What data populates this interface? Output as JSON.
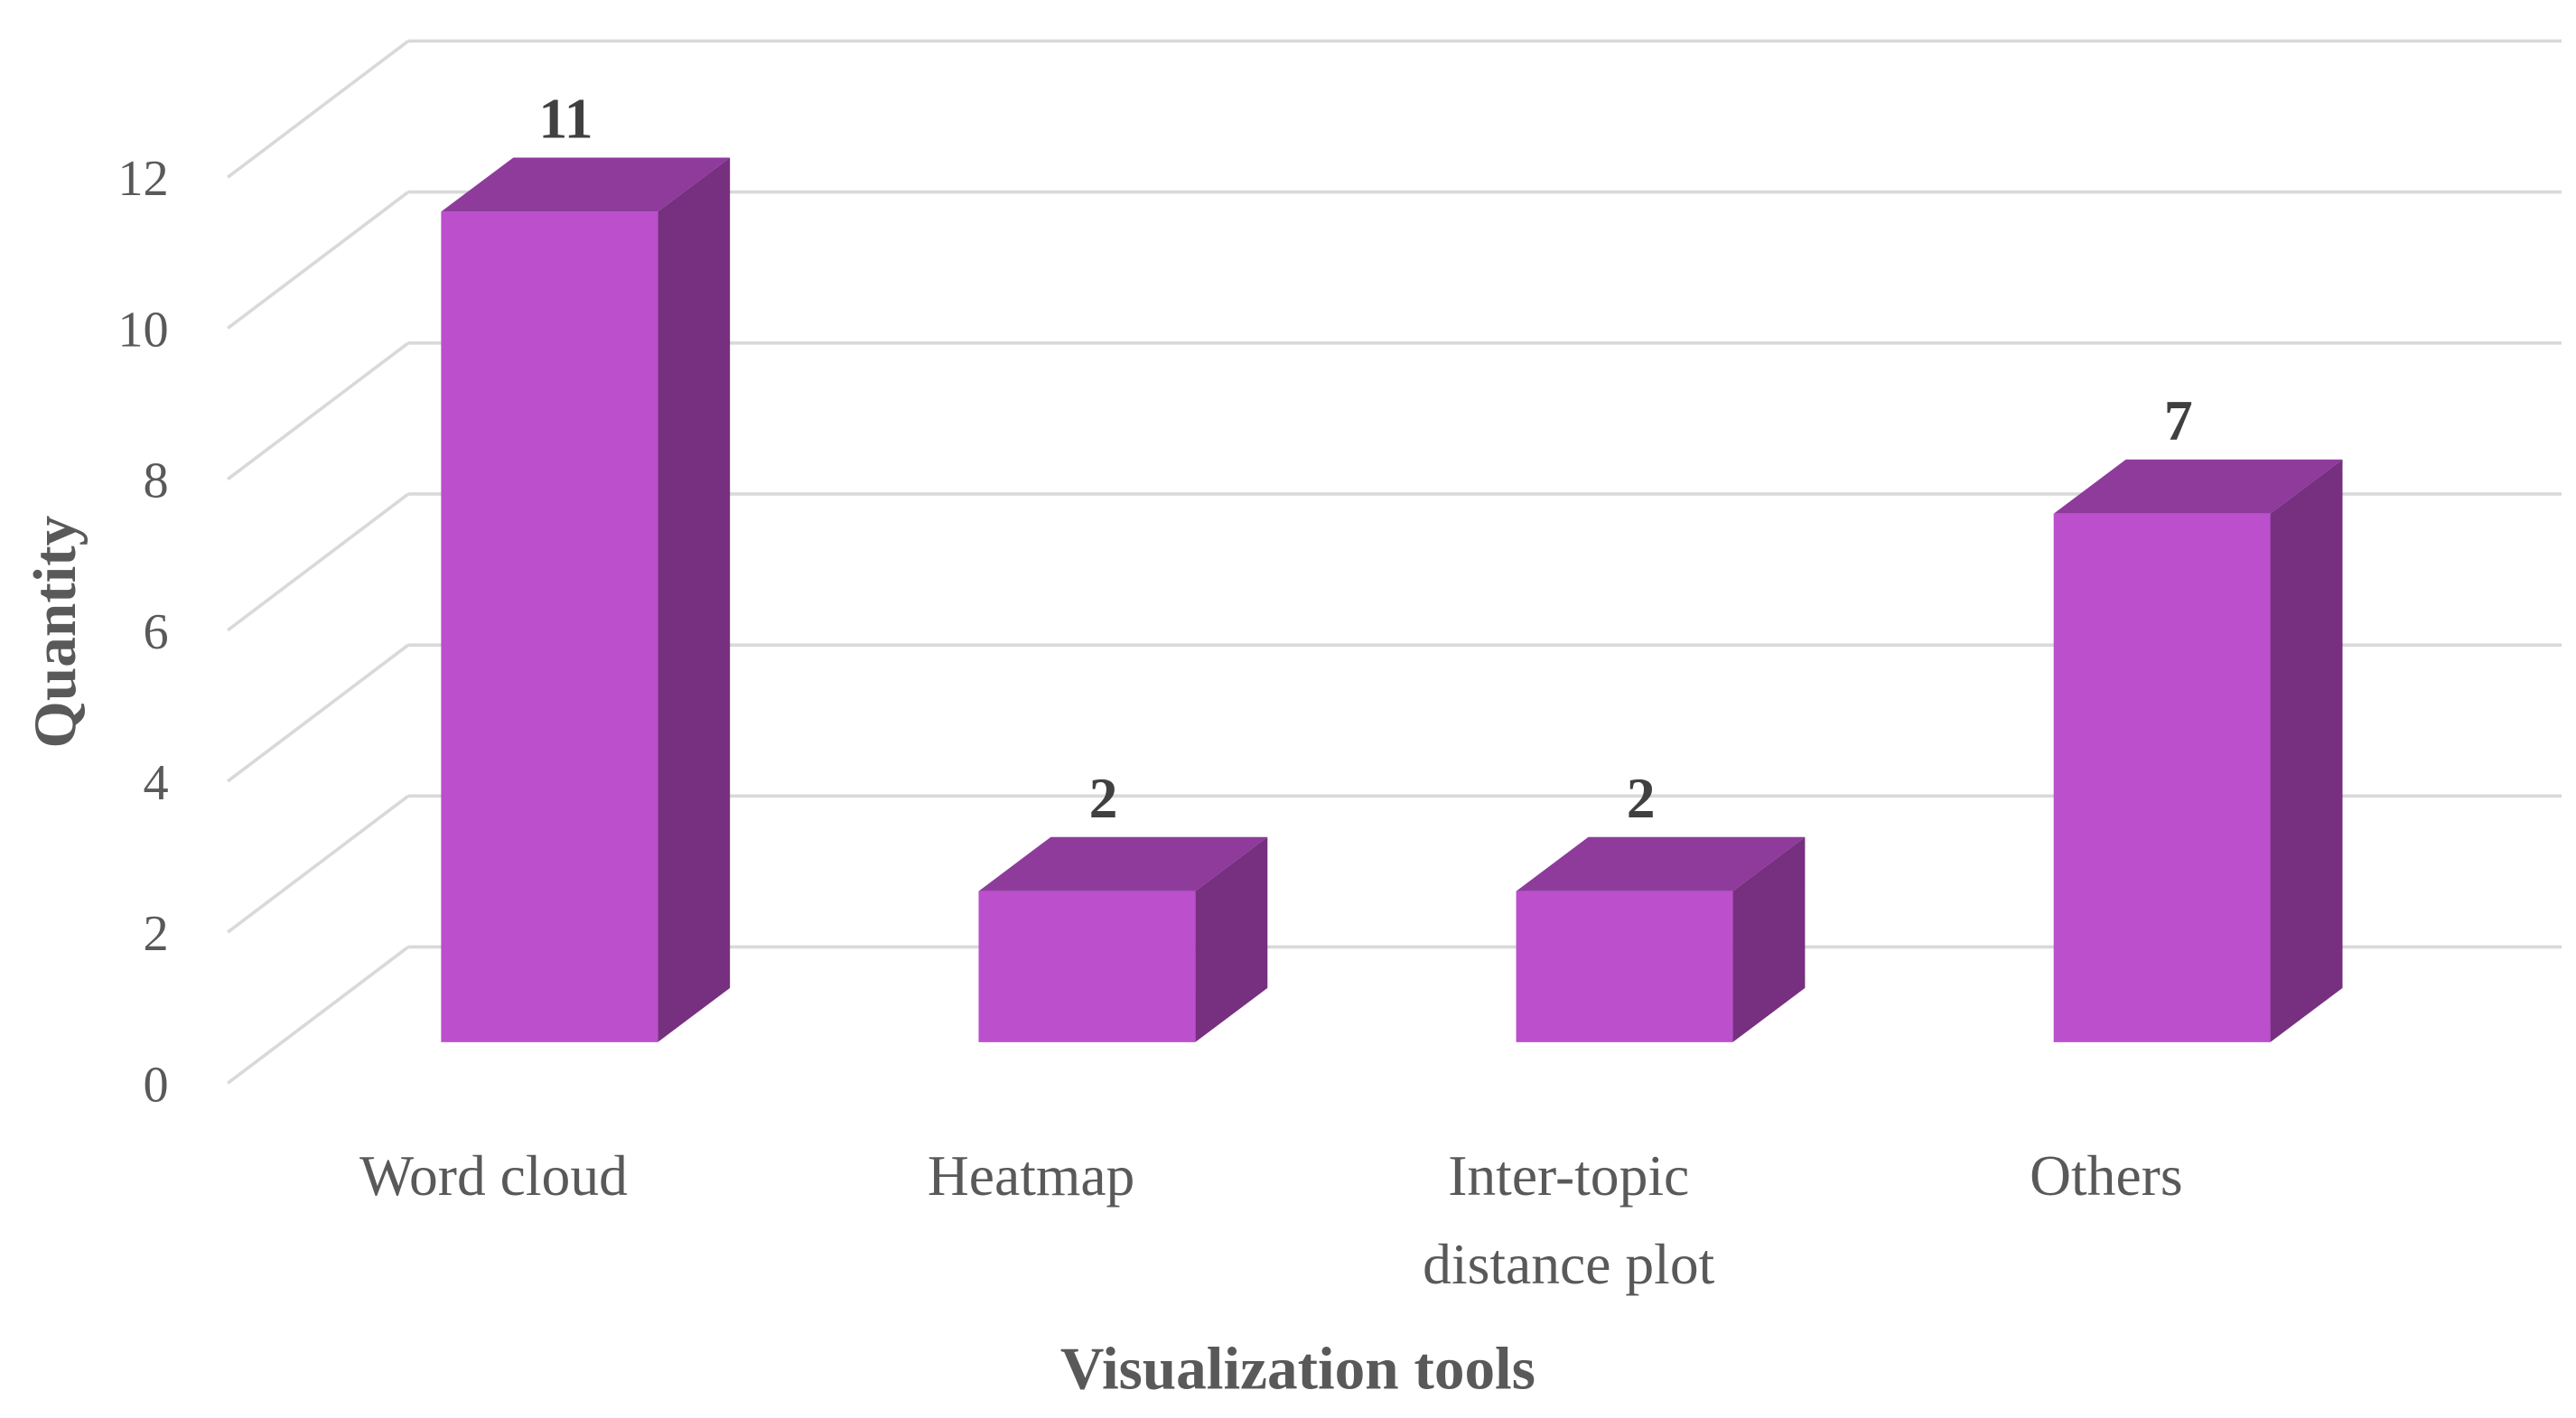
{
  "chart_data": {
    "type": "bar3d",
    "xlabel": "Visualization  tools",
    "ylabel": "Quantity",
    "categories": [
      "Word cloud",
      "Heatmap",
      "Inter-topic\ndistance plot",
      "Others"
    ],
    "values": [
      11,
      2,
      2,
      7
    ],
    "ylim": [
      0,
      12
    ],
    "yticks": [
      0,
      2,
      4,
      6,
      8,
      10,
      12
    ],
    "grid": true,
    "colors": {
      "front": "#bb4fcc",
      "side": "#76307f",
      "top": "#8e3b9c"
    }
  }
}
